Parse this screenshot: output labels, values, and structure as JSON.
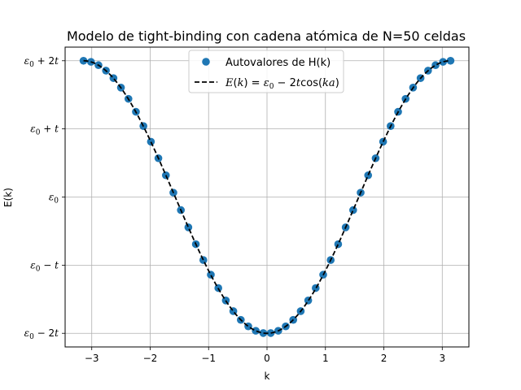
{
  "chart_data": {
    "type": "scatter",
    "title": "Modelo de tight-binding con cadena atómica de N=50 celdas",
    "xlabel": "k",
    "ylabel": "E(k)",
    "xlim": [
      -3.456,
      3.456
    ],
    "ylim": [
      -2.2,
      2.2
    ],
    "grid": true,
    "legend_position": "top-center",
    "x_ticks": [
      {
        "value": -3,
        "label": "−3"
      },
      {
        "value": -2,
        "label": "−2"
      },
      {
        "value": -1,
        "label": "−1"
      },
      {
        "value": 0,
        "label": "0"
      },
      {
        "value": 1,
        "label": "1"
      },
      {
        "value": 2,
        "label": "2"
      },
      {
        "value": 3,
        "label": "3"
      }
    ],
    "y_ticks": [
      {
        "value": -2,
        "label": "ε0 − 2t",
        "main": "ε",
        "sub": "0",
        "rest": " − 2",
        "var": "t"
      },
      {
        "value": -1,
        "label": "ε0 − t",
        "main": "ε",
        "sub": "0",
        "rest": " − ",
        "var": "t"
      },
      {
        "value": 0,
        "label": "ε0",
        "main": "ε",
        "sub": "0",
        "rest": "",
        "var": ""
      },
      {
        "value": 1,
        "label": "ε0 + t",
        "main": "ε",
        "sub": "0",
        "rest": " + ",
        "var": "t"
      },
      {
        "value": 2,
        "label": "ε0 + 2t",
        "main": "ε",
        "sub": "0",
        "rest": " + 2",
        "var": "t"
      }
    ],
    "series": [
      {
        "name": "Autovalores de H(k)",
        "kind": "markers",
        "color": "#1f77b4",
        "x": [
          -3.1416,
          -3.0134,
          -2.8851,
          -2.7569,
          -2.6287,
          -2.5005,
          -2.3722,
          -2.244,
          -2.1158,
          -1.9875,
          -1.8593,
          -1.7311,
          -1.6029,
          -1.4746,
          -1.3464,
          -1.2182,
          -1.09,
          -0.9617,
          -0.8335,
          -0.7053,
          -0.577,
          -0.4488,
          -0.3206,
          -0.1924,
          -0.0641,
          0.0641,
          0.1924,
          0.3206,
          0.4488,
          0.577,
          0.7053,
          0.8335,
          0.9617,
          1.09,
          1.2182,
          1.3464,
          1.4746,
          1.6029,
          1.7311,
          1.8593,
          1.9875,
          2.1158,
          2.244,
          2.3722,
          2.5005,
          2.6287,
          2.7569,
          2.8851,
          3.0134,
          3.1416
        ],
        "y": [
          2.0,
          1.984,
          1.935,
          1.855,
          1.745,
          1.606,
          1.441,
          1.251,
          1.041,
          0.812,
          0.569,
          0.319,
          0.064,
          -0.192,
          -0.445,
          -0.692,
          -0.925,
          -1.14,
          -1.336,
          -1.518,
          -1.675,
          -1.803,
          -1.898,
          -1.963,
          -1.996,
          -1.996,
          -1.963,
          -1.898,
          -1.803,
          -1.675,
          -1.518,
          -1.336,
          -1.14,
          -0.925,
          -0.692,
          -0.445,
          -0.192,
          0.064,
          0.319,
          0.569,
          0.812,
          1.041,
          1.251,
          1.441,
          1.606,
          1.745,
          1.855,
          1.935,
          1.984,
          2.0
        ]
      },
      {
        "name": "E(k) = ε0 − 2t cos(ka)",
        "kind": "dashed-line",
        "color": "#000000",
        "x_range": [
          -3.1416,
          3.1416
        ],
        "formula": "-2cos(k)"
      }
    ]
  }
}
